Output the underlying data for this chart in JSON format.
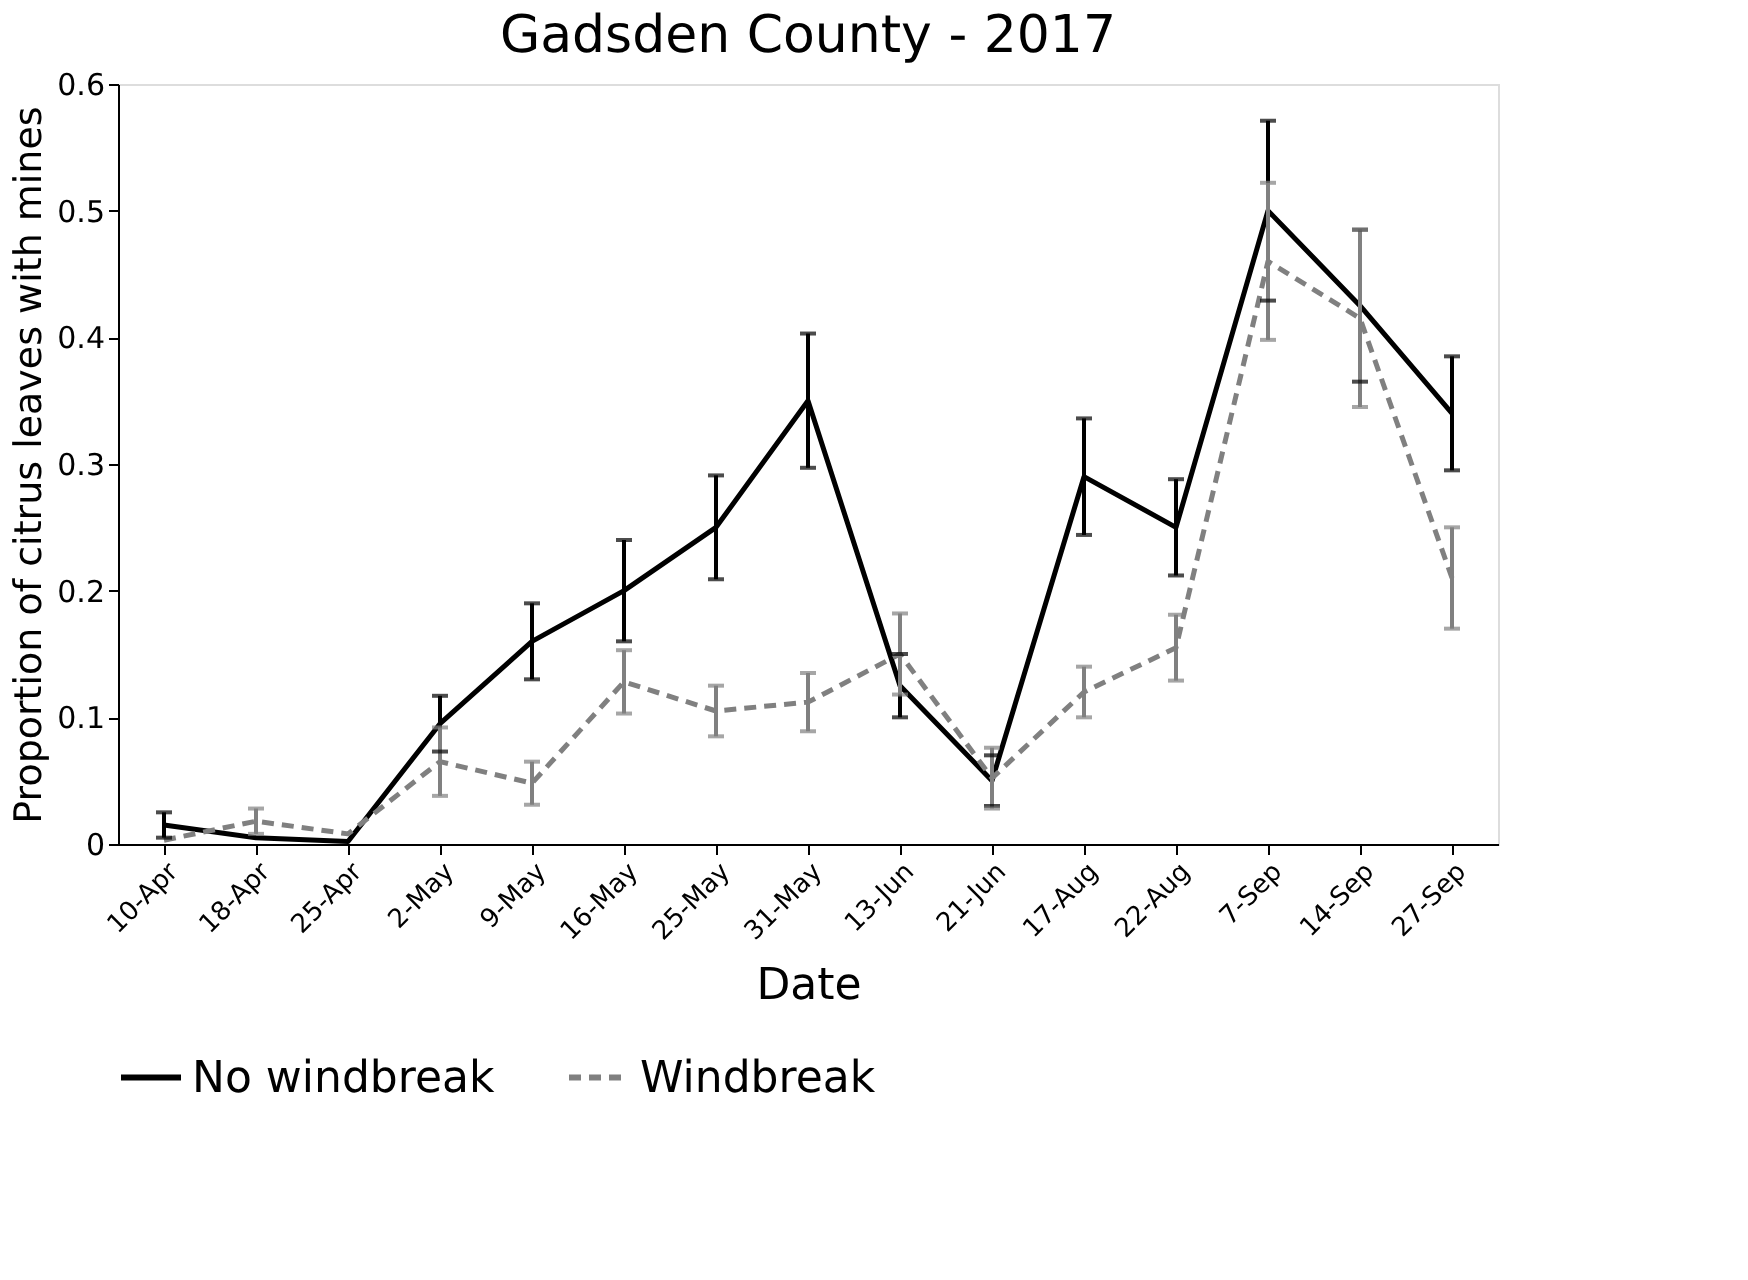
{
  "chart_data": {
    "type": "line",
    "title": "Gadsden County - 2017",
    "xlabel": "Date",
    "ylabel": "Proportion of citrus leaves with mines",
    "categories": [
      "10-Apr",
      "18-Apr",
      "25-Apr",
      "2-May",
      "9-May",
      "16-May",
      "25-May",
      "31-May",
      "13-Jun",
      "21-Jun",
      "17-Aug",
      "22-Aug",
      "7-Sep",
      "14-Sep",
      "27-Sep"
    ],
    "series": [
      {
        "name": "No windbreak",
        "color": "#000000",
        "line_style": "solid",
        "values": [
          0.015,
          0.005,
          0.002,
          0.095,
          0.16,
          0.2,
          0.25,
          0.35,
          0.125,
          0.05,
          0.29,
          0.25,
          0.5,
          0.425,
          0.34
        ],
        "errors": [
          0.01,
          null,
          null,
          0.022,
          0.03,
          0.04,
          0.041,
          0.053,
          0.025,
          0.02,
          0.046,
          0.038,
          0.071,
          0.06,
          0.045
        ]
      },
      {
        "name": "Windbreak",
        "color": "#808080",
        "line_style": "dashed",
        "values": [
          0.003,
          0.018,
          0.008,
          0.065,
          0.048,
          0.128,
          0.105,
          0.112,
          0.15,
          0.052,
          0.12,
          0.155,
          0.46,
          0.415,
          0.21
        ],
        "errors": [
          null,
          0.01,
          null,
          0.027,
          0.017,
          0.025,
          0.02,
          0.023,
          0.032,
          0.024,
          0.02,
          0.026,
          0.062,
          0.07,
          0.04
        ]
      }
    ],
    "ylim": [
      0,
      0.6
    ],
    "yticks": [
      0,
      0.1,
      0.2,
      0.3,
      0.4,
      0.5,
      0.6
    ],
    "grid": false,
    "legend": "bottom",
    "marker": "none"
  }
}
